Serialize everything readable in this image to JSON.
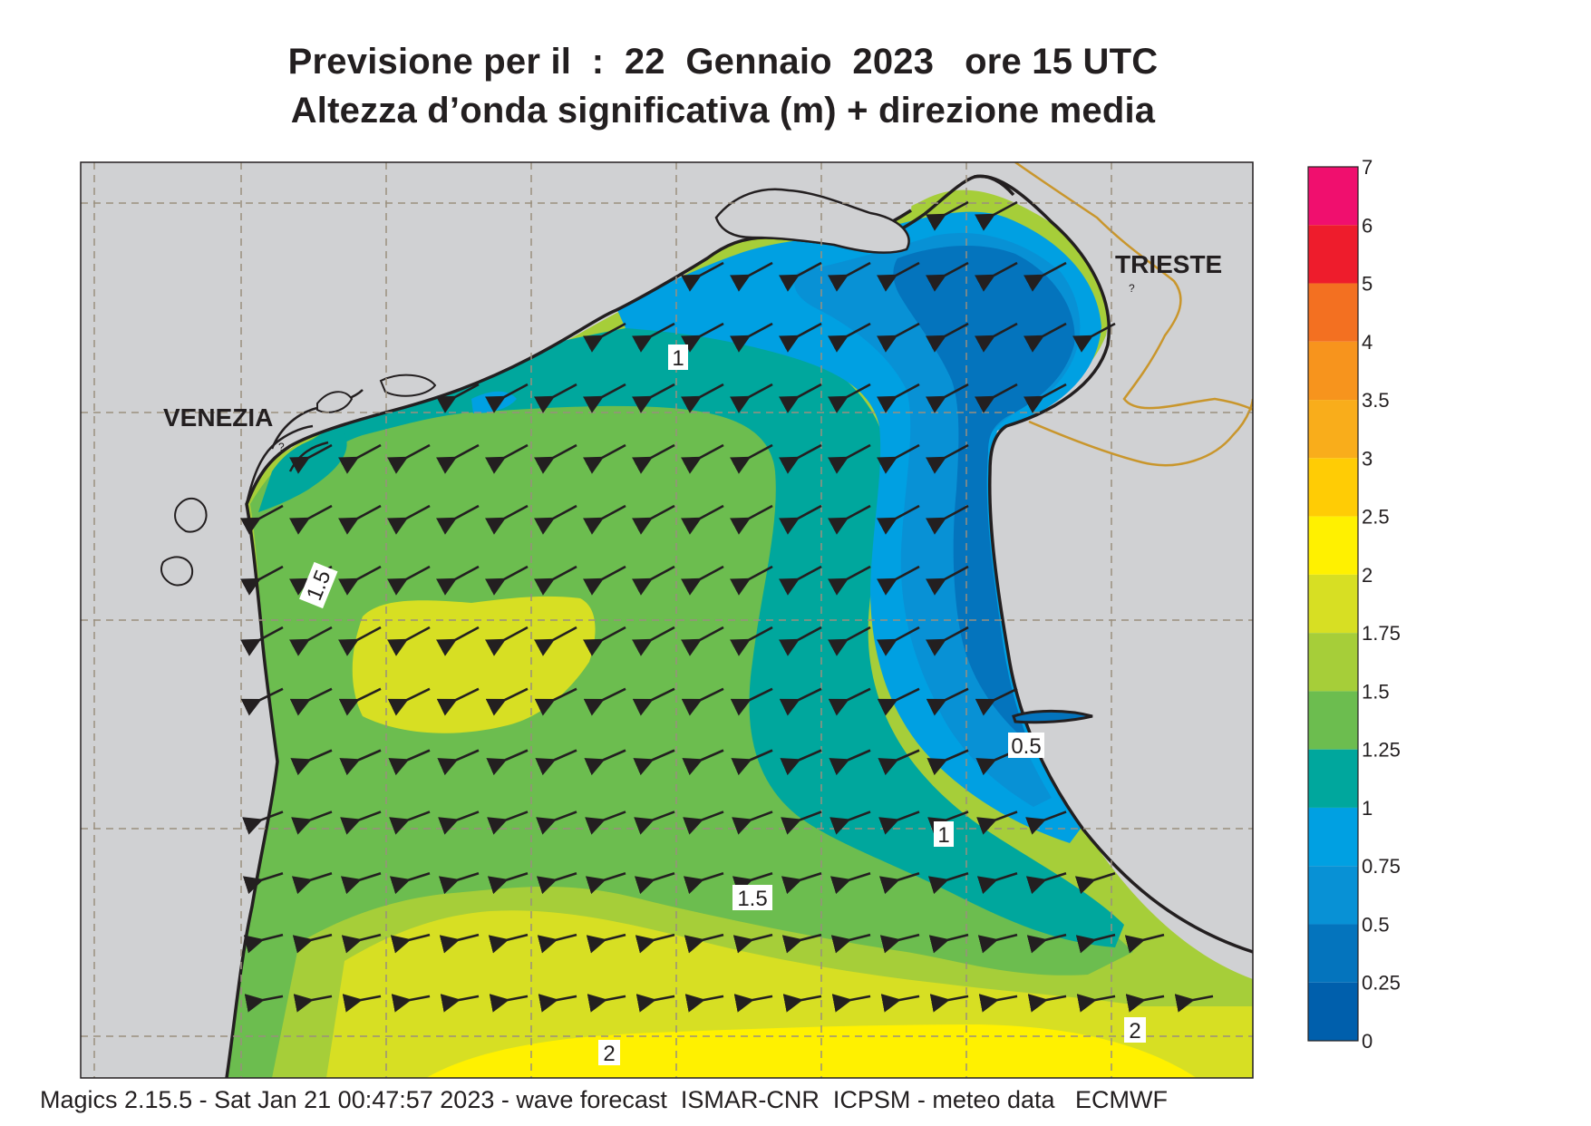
{
  "title": {
    "line1": "Previsione per il  :  22  Gennaio  2023   ore 15 UTC",
    "line2": "Altezza d’onda significativa (m) + direzione media"
  },
  "map": {
    "region": "Northern Adriatic Sea",
    "place_labels": [
      {
        "id": "venezia",
        "text": "VENEZIA"
      },
      {
        "id": "trieste",
        "text": "TRIESTE"
      }
    ],
    "contour_labels": [
      "1",
      "1.5",
      "0.5",
      "1",
      "1.5",
      "2",
      "2"
    ],
    "mean_direction": "waves travelling toward the south-west (from NE)",
    "grid": "dashed lat/lon graticule",
    "colors": {
      "land": "#d0d1d3",
      "coastline": "#231f20",
      "border": "#c9962c",
      "grid": "#9a8f7e"
    }
  },
  "legend": {
    "levels": [
      {
        "label": "7",
        "color": "#f00f6e"
      },
      {
        "label": "6",
        "color": "#ee1c2c"
      },
      {
        "label": "5",
        "color": "#f37021"
      },
      {
        "label": "4",
        "color": "#f7941d"
      },
      {
        "label": "3.5",
        "color": "#f9ad1b"
      },
      {
        "label": "3",
        "color": "#ffcc05"
      },
      {
        "label": "2.5",
        "color": "#fff100"
      },
      {
        "label": "2",
        "color": "#d7df23"
      },
      {
        "label": "1.75",
        "color": "#a6ce39"
      },
      {
        "label": "1.5",
        "color": "#6cbd4f"
      },
      {
        "label": "1.25",
        "color": "#00a79d"
      },
      {
        "label": "1",
        "color": "#00a0e2"
      },
      {
        "label": "0.75",
        "color": "#0891d5"
      },
      {
        "label": "0.5",
        "color": "#0474bd"
      },
      {
        "label": "0.25",
        "color": "#005fac"
      },
      {
        "label": "0",
        "color": ""
      }
    ]
  },
  "footer": "Magics 2.15.5 - Sat Jan 21 00:47:57 2023 - wave forecast  ISMAR-CNR  ICPSM - meteo data   ECMWF"
}
